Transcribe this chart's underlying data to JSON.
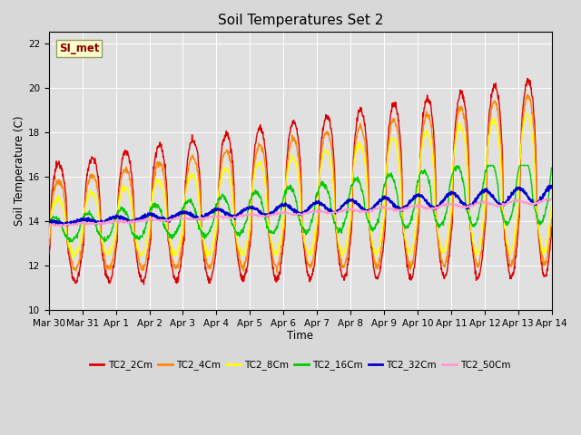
{
  "title": "Soil Temperatures Set 2",
  "xlabel": "Time",
  "ylabel": "Soil Temperature (C)",
  "ylim": [
    10,
    22.5
  ],
  "yticks": [
    10,
    12,
    14,
    16,
    18,
    20,
    22
  ],
  "annotation": "SI_met",
  "bg_color": "#e0e0e0",
  "series_order": [
    "TC2_2Cm",
    "TC2_4Cm",
    "TC2_8Cm",
    "TC2_16Cm",
    "TC2_32Cm",
    "TC2_50Cm"
  ],
  "series": {
    "TC2_2Cm": {
      "color": "#dd0000",
      "lw": 1.0
    },
    "TC2_4Cm": {
      "color": "#ff8800",
      "lw": 1.0
    },
    "TC2_8Cm": {
      "color": "#ffff00",
      "lw": 1.0
    },
    "TC2_16Cm": {
      "color": "#00cc00",
      "lw": 1.0
    },
    "TC2_32Cm": {
      "color": "#0000cc",
      "lw": 1.5
    },
    "TC2_50Cm": {
      "color": "#ff99cc",
      "lw": 1.0
    }
  },
  "xtick_labels": [
    "Mar 30",
    "Mar 31",
    "Apr 1",
    "Apr 2",
    "Apr 3",
    "Apr 4",
    "Apr 5",
    "Apr 6",
    "Apr 7",
    "Apr 8",
    "Apr 9",
    "Apr 10",
    "Apr 11",
    "Apr 12",
    "Apr 13",
    "Apr 14"
  ],
  "xtick_positions": [
    0,
    1,
    2,
    3,
    4,
    5,
    6,
    7,
    8,
    9,
    10,
    11,
    12,
    13,
    14,
    15
  ],
  "figsize": [
    6.4,
    4.8
  ],
  "dpi": 100
}
